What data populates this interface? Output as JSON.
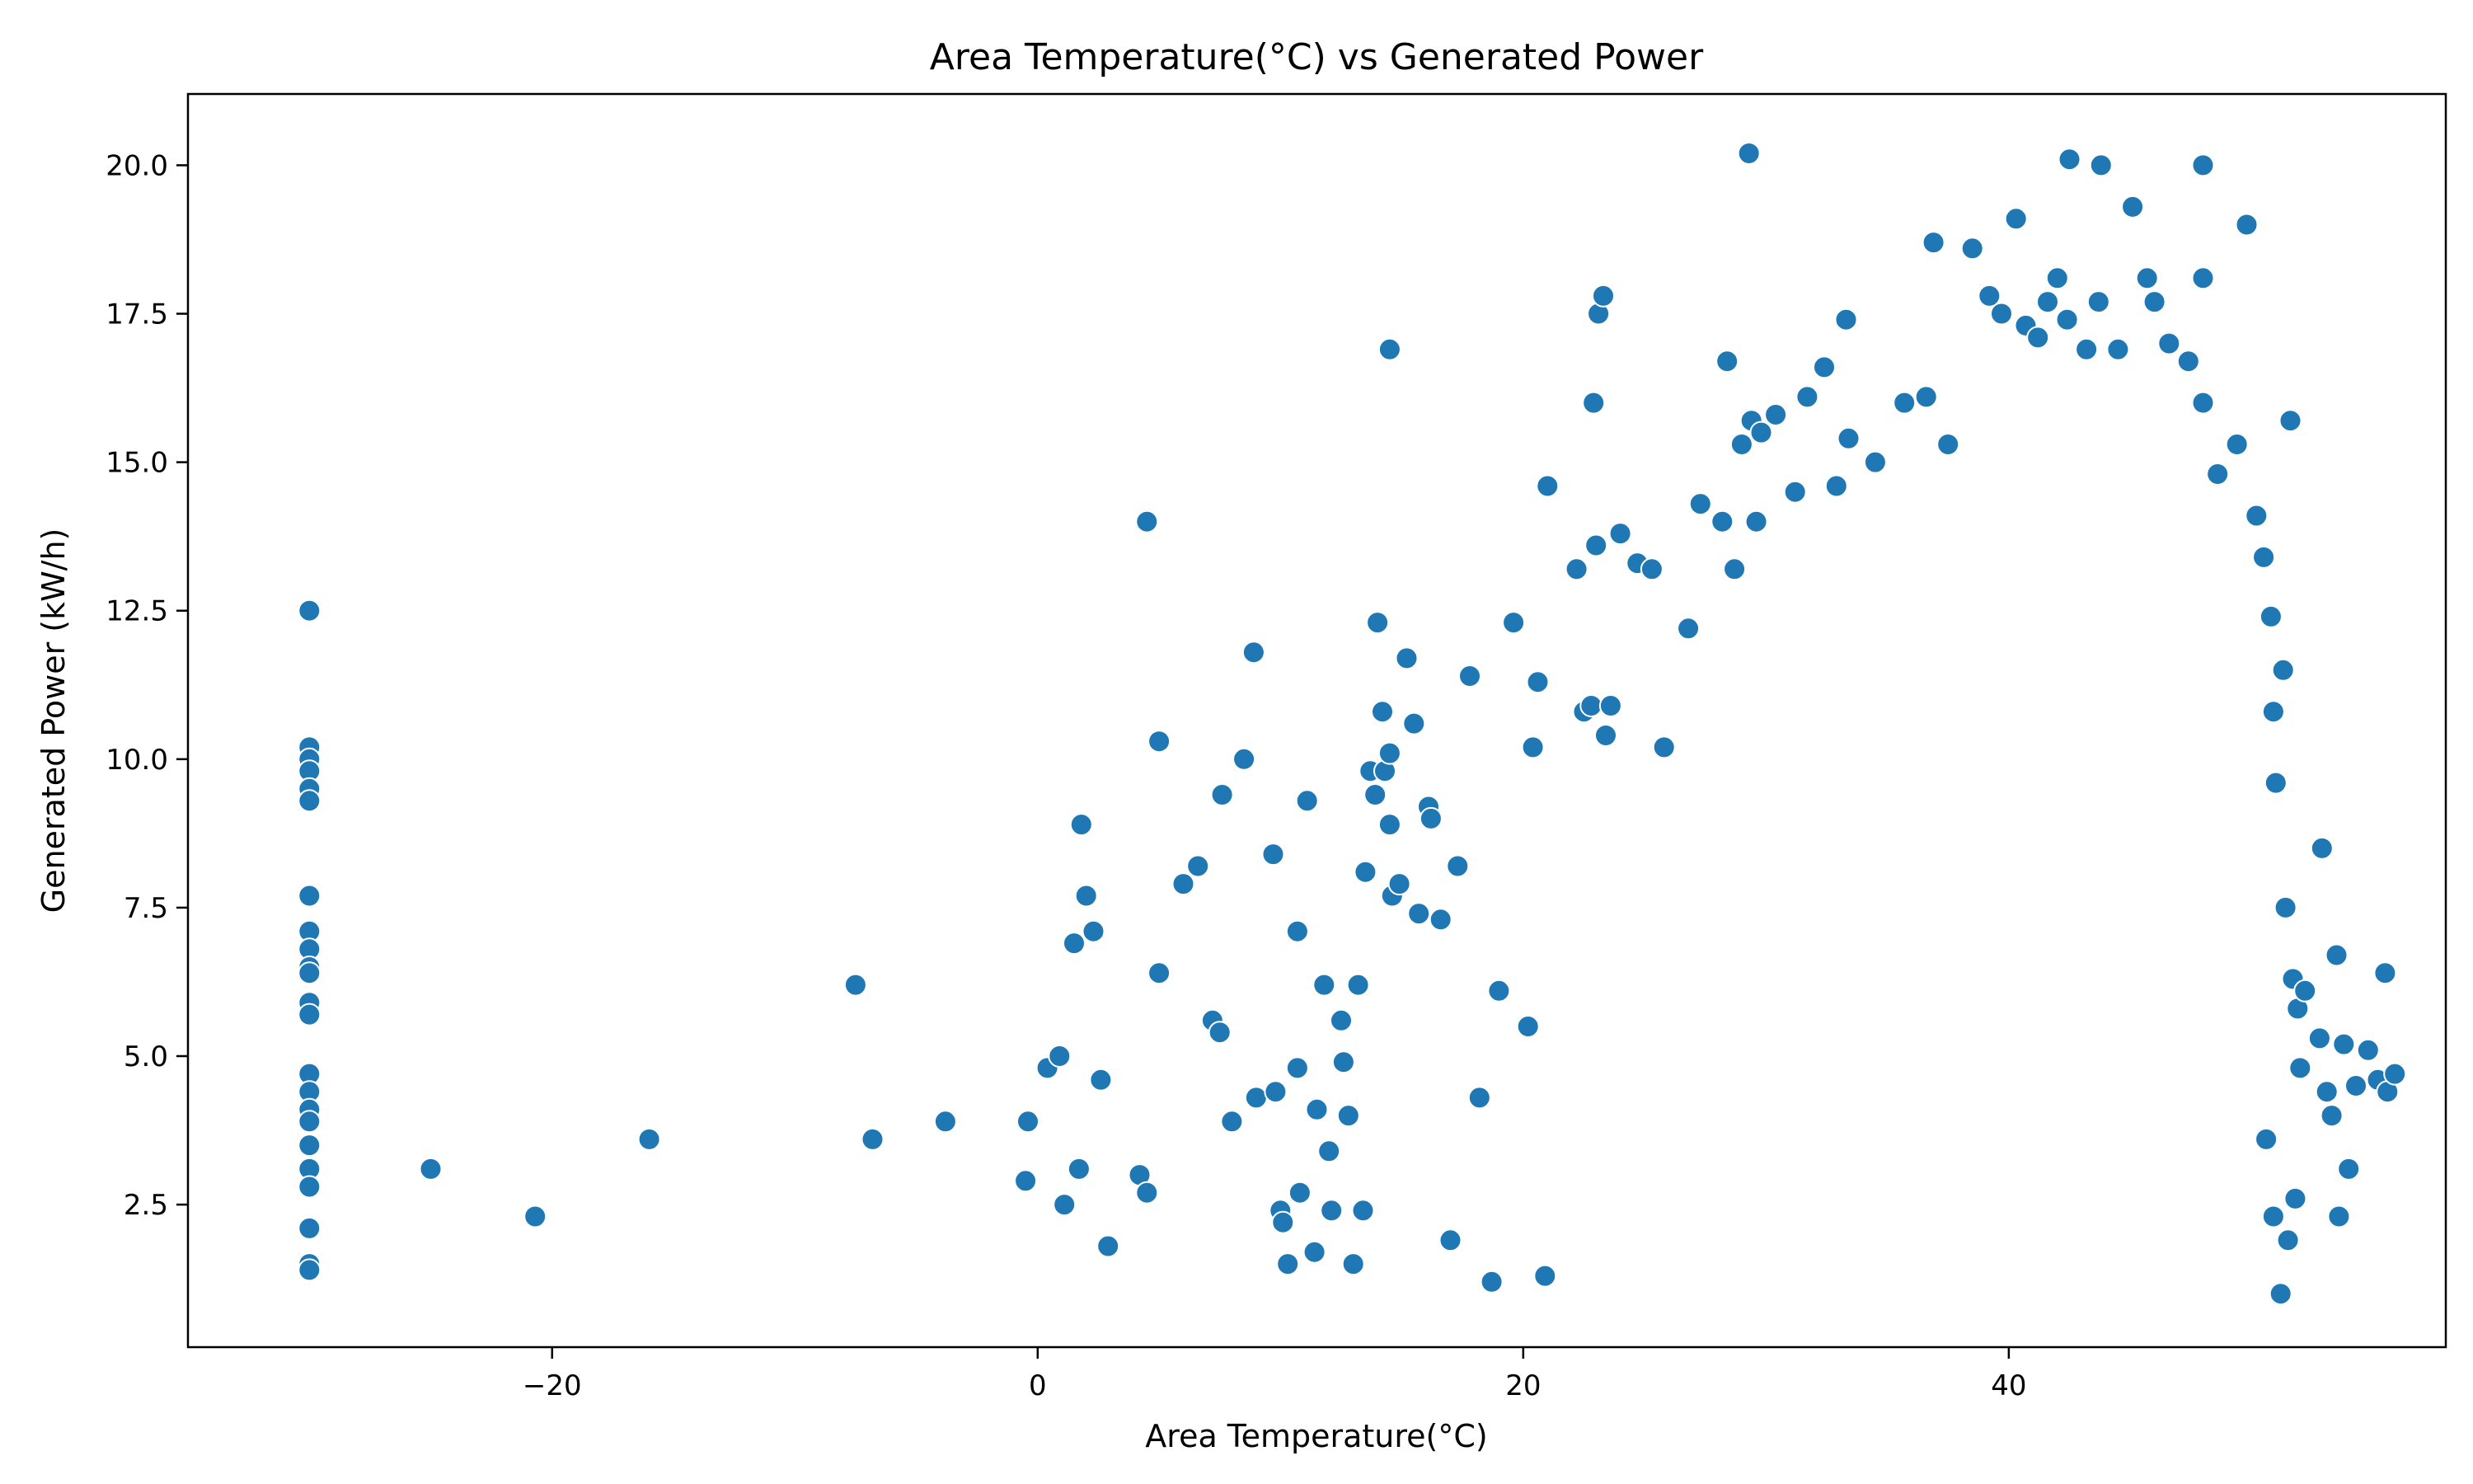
{
  "chart_data": {
    "type": "scatter",
    "title": "Area Temperature(°C) vs Generated Power",
    "xlabel": "Area Temperature(°C)",
    "ylabel": "Generated Power (kW/h)",
    "xlim": [
      -35,
      58
    ],
    "ylim": [
      0.1,
      21.2
    ],
    "xticks": [
      -20,
      0,
      20,
      40
    ],
    "xtick_labels": [
      "−20",
      "0",
      "20",
      "40"
    ],
    "yticks": [
      2.5,
      5.0,
      7.5,
      10.0,
      12.5,
      15.0,
      17.5,
      20.0
    ],
    "ytick_labels": [
      "2.5",
      "5.0",
      "7.5",
      "10.0",
      "12.5",
      "15.0",
      "17.5",
      "20.0"
    ],
    "grid": false,
    "legend": "none",
    "colors": {
      "marker": "#1f77b4",
      "marker_edge": "#ffffff",
      "axes": "#000000"
    },
    "series": [
      {
        "points": [
          [
            -30,
            12.5
          ],
          [
            -30,
            10.2
          ],
          [
            -30,
            10.0
          ],
          [
            -30,
            9.8
          ],
          [
            -30,
            9.5
          ],
          [
            -30,
            9.3
          ],
          [
            -30,
            7.7
          ],
          [
            -30,
            7.1
          ],
          [
            -30,
            6.8
          ],
          [
            -30,
            6.5
          ],
          [
            -30,
            6.4
          ],
          [
            -30,
            5.9
          ],
          [
            -30,
            5.7
          ],
          [
            -30,
            4.7
          ],
          [
            -30,
            4.4
          ],
          [
            -30,
            4.1
          ],
          [
            -30,
            3.9
          ],
          [
            -30,
            3.5
          ],
          [
            -30,
            3.1
          ],
          [
            -30,
            2.8
          ],
          [
            -30,
            2.1
          ],
          [
            -30,
            1.5
          ],
          [
            -30,
            1.4
          ],
          [
            -25,
            3.1
          ],
          [
            -20.7,
            2.3
          ],
          [
            -16,
            3.6
          ],
          [
            -7.5,
            6.2
          ],
          [
            -6.8,
            3.6
          ],
          [
            -3.8,
            3.9
          ],
          [
            -0.4,
            3.9
          ],
          [
            -0.5,
            2.9
          ],
          [
            0.4,
            4.8
          ],
          [
            0.9,
            5.0
          ],
          [
            1.1,
            2.5
          ],
          [
            1.5,
            6.9
          ],
          [
            1.7,
            3.1
          ],
          [
            1.8,
            8.9
          ],
          [
            2.0,
            7.7
          ],
          [
            2.3,
            7.1
          ],
          [
            2.6,
            4.6
          ],
          [
            2.9,
            1.8
          ],
          [
            4.2,
            3.0
          ],
          [
            4.5,
            2.7
          ],
          [
            4.5,
            14.0
          ],
          [
            5.0,
            10.3
          ],
          [
            5.0,
            6.4
          ],
          [
            6.0,
            7.9
          ],
          [
            6.6,
            8.2
          ],
          [
            7.2,
            5.6
          ],
          [
            7.5,
            5.4
          ],
          [
            7.6,
            9.4
          ],
          [
            8.0,
            3.9
          ],
          [
            8.5,
            10.0
          ],
          [
            8.9,
            11.8
          ],
          [
            9.0,
            4.3
          ],
          [
            9.7,
            8.4
          ],
          [
            9.8,
            4.4
          ],
          [
            10.0,
            2.4
          ],
          [
            10.1,
            2.2
          ],
          [
            10.3,
            1.5
          ],
          [
            10.7,
            4.8
          ],
          [
            10.7,
            7.1
          ],
          [
            10.8,
            2.7
          ],
          [
            11.1,
            9.3
          ],
          [
            11.4,
            1.7
          ],
          [
            11.5,
            4.1
          ],
          [
            11.8,
            6.2
          ],
          [
            12.0,
            3.4
          ],
          [
            12.1,
            2.4
          ],
          [
            12.5,
            5.6
          ],
          [
            12.6,
            4.9
          ],
          [
            12.8,
            4.0
          ],
          [
            13.0,
            1.5
          ],
          [
            13.2,
            6.2
          ],
          [
            13.4,
            2.4
          ],
          [
            13.5,
            8.1
          ],
          [
            13.7,
            9.8
          ],
          [
            13.9,
            9.4
          ],
          [
            14.0,
            12.3
          ],
          [
            14.2,
            10.8
          ],
          [
            14.3,
            9.8
          ],
          [
            14.5,
            16.9
          ],
          [
            14.5,
            10.1
          ],
          [
            14.5,
            8.9
          ],
          [
            14.6,
            7.7
          ],
          [
            14.9,
            7.9
          ],
          [
            15.2,
            11.7
          ],
          [
            15.5,
            10.6
          ],
          [
            15.7,
            7.4
          ],
          [
            16.1,
            9.2
          ],
          [
            16.2,
            9.0
          ],
          [
            16.6,
            7.3
          ],
          [
            17.0,
            1.9
          ],
          [
            17.3,
            8.2
          ],
          [
            17.8,
            11.4
          ],
          [
            18.2,
            4.3
          ],
          [
            18.7,
            1.2
          ],
          [
            19.0,
            6.1
          ],
          [
            19.6,
            12.3
          ],
          [
            20.2,
            5.5
          ],
          [
            20.4,
            10.2
          ],
          [
            20.6,
            11.3
          ],
          [
            20.9,
            1.3
          ],
          [
            21.0,
            14.6
          ],
          [
            22.2,
            13.2
          ],
          [
            22.5,
            10.8
          ],
          [
            22.8,
            10.9
          ],
          [
            22.9,
            16.0
          ],
          [
            23.0,
            13.6
          ],
          [
            23.1,
            17.5
          ],
          [
            23.3,
            17.8
          ],
          [
            23.4,
            10.4
          ],
          [
            23.6,
            10.9
          ],
          [
            24.0,
            13.8
          ],
          [
            24.7,
            13.3
          ],
          [
            25.3,
            13.2
          ],
          [
            25.8,
            10.2
          ],
          [
            26.8,
            12.2
          ],
          [
            27.3,
            14.3
          ],
          [
            28.2,
            14.0
          ],
          [
            28.4,
            16.7
          ],
          [
            28.7,
            13.2
          ],
          [
            29.0,
            15.3
          ],
          [
            29.3,
            20.2
          ],
          [
            29.4,
            15.7
          ],
          [
            29.6,
            14.0
          ],
          [
            29.8,
            15.5
          ],
          [
            30.4,
            15.8
          ],
          [
            31.2,
            14.5
          ],
          [
            31.7,
            16.1
          ],
          [
            32.4,
            16.6
          ],
          [
            32.9,
            14.6
          ],
          [
            33.3,
            17.4
          ],
          [
            33.4,
            15.4
          ],
          [
            34.5,
            15.0
          ],
          [
            35.7,
            16.0
          ],
          [
            36.6,
            16.1
          ],
          [
            36.9,
            18.7
          ],
          [
            37.5,
            15.3
          ],
          [
            38.5,
            18.6
          ],
          [
            39.2,
            17.8
          ],
          [
            39.7,
            17.5
          ],
          [
            40.3,
            19.1
          ],
          [
            40.7,
            17.3
          ],
          [
            41.2,
            17.1
          ],
          [
            41.6,
            17.7
          ],
          [
            42.0,
            18.1
          ],
          [
            42.4,
            17.4
          ],
          [
            42.5,
            20.1
          ],
          [
            43.2,
            16.9
          ],
          [
            43.7,
            17.7
          ],
          [
            43.8,
            20.0
          ],
          [
            44.5,
            16.9
          ],
          [
            45.1,
            19.3
          ],
          [
            45.7,
            18.1
          ],
          [
            46.0,
            17.7
          ],
          [
            46.6,
            17.0
          ],
          [
            47.4,
            16.7
          ],
          [
            48.0,
            16.0
          ],
          [
            48.0,
            20.0
          ],
          [
            48.0,
            18.1
          ],
          [
            48.6,
            14.8
          ],
          [
            49.4,
            15.3
          ],
          [
            49.8,
            19.0
          ],
          [
            50.2,
            14.1
          ],
          [
            50.5,
            13.4
          ],
          [
            50.8,
            12.4
          ],
          [
            50.9,
            10.8
          ],
          [
            51.0,
            9.6
          ],
          [
            51.3,
            11.5
          ],
          [
            51.4,
            7.5
          ],
          [
            51.6,
            15.7
          ],
          [
            51.7,
            6.3
          ],
          [
            51.9,
            5.8
          ],
          [
            52.2,
            6.1
          ],
          [
            52.8,
            5.3
          ],
          [
            52.9,
            8.5
          ],
          [
            53.1,
            4.4
          ],
          [
            53.3,
            4.0
          ],
          [
            53.5,
            6.7
          ],
          [
            53.6,
            2.3
          ],
          [
            53.8,
            5.2
          ],
          [
            54.0,
            3.1
          ],
          [
            54.3,
            4.5
          ],
          [
            54.8,
            5.1
          ],
          [
            55.2,
            4.6
          ],
          [
            55.5,
            6.4
          ],
          [
            55.6,
            4.4
          ],
          [
            55.9,
            4.7
          ],
          [
            51.5,
            1.9
          ],
          [
            51.2,
            1.0
          ],
          [
            50.9,
            2.3
          ],
          [
            51.8,
            2.6
          ],
          [
            52.0,
            4.8
          ],
          [
            50.6,
            3.6
          ]
        ]
      }
    ]
  }
}
